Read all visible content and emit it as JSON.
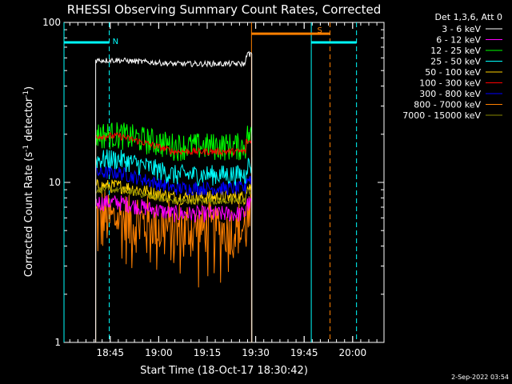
{
  "chart_data": {
    "type": "line",
    "title": "RHESSI Observing Summary Count Rates, Corrected",
    "xlabel": "Start Time (18-Oct-17 18:30:42)",
    "ylabel": "Corrected Count Rate (s",
    "ylabel_sup": "-1",
    "ylabel_mid": " detector",
    "ylabel_sup2": "-1",
    "ylabel_end": ")",
    "yscale": "log",
    "ylim": [
      1,
      100
    ],
    "xlim_minutes": [
      0,
      99
    ],
    "x_ticks": [
      {
        "label": "18:45",
        "minute": 14.3
      },
      {
        "label": "19:00",
        "minute": 29.3
      },
      {
        "label": "19:15",
        "minute": 44.3
      },
      {
        "label": "19:30",
        "minute": 59.3
      },
      {
        "label": "19:45",
        "minute": 74.3
      },
      {
        "label": "20:00",
        "minute": 89.3
      }
    ],
    "y_ticks": [
      {
        "label": "100",
        "value": 100
      },
      {
        "label": "10",
        "value": 10
      },
      {
        "label": "1",
        "value": 1
      }
    ],
    "legend_title": "Det 1,3,6, Att 0",
    "legend_placement": "right",
    "series": [
      {
        "name": "3 - 6 keV",
        "color": "#ffffff",
        "level": 58,
        "trend": 0.95,
        "noise": 0.04
      },
      {
        "name": "6 - 12 keV",
        "color": "#ff00ff",
        "level": 7.5,
        "trend": 0.85,
        "noise": 0.12
      },
      {
        "name": "12 - 25 keV",
        "color": "#00ff00",
        "level": 20,
        "trend": 0.85,
        "noise": 0.2
      },
      {
        "name": "25 - 50 keV",
        "color": "#00ffff",
        "level": 14,
        "trend": 0.8,
        "noise": 0.15
      },
      {
        "name": "50 - 100 keV",
        "color": "#ffd200",
        "level": 9.5,
        "trend": 0.85,
        "noise": 0.1
      },
      {
        "name": "100 - 300 keV",
        "color": "#ff0000",
        "level": 19.5,
        "trend": 0.8,
        "noise": 0.05
      },
      {
        "name": "300 - 800 keV",
        "color": "#0000ff",
        "level": 11.5,
        "trend": 0.8,
        "noise": 0.1
      },
      {
        "name": "800 - 7000 keV",
        "color": "#ff8000",
        "level": 6,
        "trend": 0.85,
        "noise": 0.25
      },
      {
        "name": "7000 - 15000 keV",
        "color": "#888800",
        "level": 9,
        "trend": 0.85,
        "noise": 0.05
      }
    ],
    "data_window_minutes": [
      9.8,
      58.1
    ],
    "annotations": [
      {
        "label": "N",
        "color": "#00ffff",
        "x_start": 0,
        "x_end": 14.0,
        "y": 75,
        "kind": "night-bar"
      },
      {
        "label": "",
        "color": "#00ffff",
        "x_start": 76.5,
        "x_end": 90.5,
        "y": 75,
        "kind": "night-bar"
      },
      {
        "label": "S",
        "color": "#ff8000",
        "x_start": 58.0,
        "x_end": 82.3,
        "y": 85,
        "kind": "saa-bar"
      }
    ],
    "vlines": [
      {
        "minute": 0,
        "color": "#00ffff",
        "style": "solid"
      },
      {
        "minute": 14.0,
        "color": "#00ffff",
        "style": "dashed"
      },
      {
        "minute": 76.5,
        "color": "#00ffff",
        "style": "solid"
      },
      {
        "minute": 90.5,
        "color": "#00ffff",
        "style": "dashed"
      },
      {
        "minute": 58.0,
        "color": "#ff8000",
        "style": "solid"
      },
      {
        "minute": 82.3,
        "color": "#ff8000",
        "style": "dashed"
      }
    ],
    "timestamp": "2-Sep-2022 03:54"
  }
}
